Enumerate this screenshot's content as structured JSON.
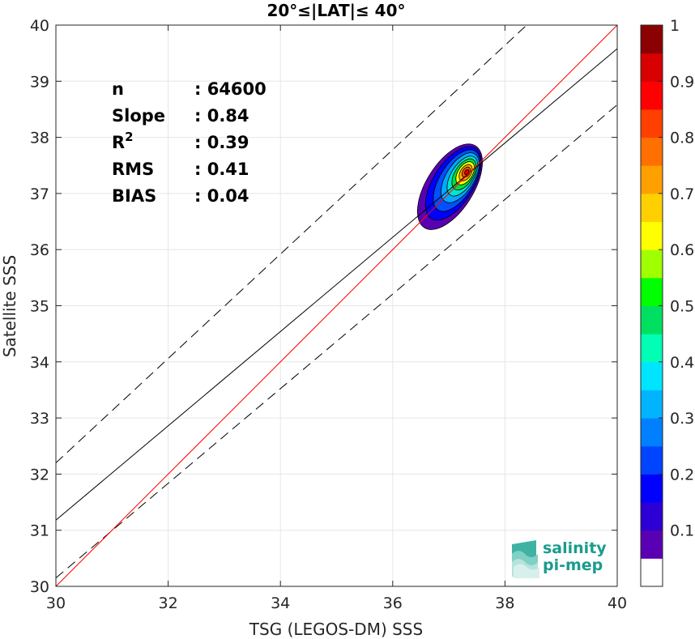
{
  "chart_data": {
    "type": "contour",
    "title": "20°≤|LAT|≤ 40°",
    "xlabel": "TSG (LEGOS-DM) SSS",
    "ylabel": "Satellite SSS",
    "xlim": [
      30,
      40
    ],
    "ylim": [
      30,
      40
    ],
    "xticks": [
      "30",
      "32",
      "34",
      "36",
      "38",
      "40"
    ],
    "yticks": [
      "30",
      "31",
      "32",
      "33",
      "34",
      "35",
      "36",
      "37",
      "38",
      "39",
      "40"
    ],
    "grid": true,
    "stats": [
      {
        "label": "n",
        "sep": ": ",
        "value": "64600"
      },
      {
        "label": "Slope",
        "sep": ": ",
        "value": "0.84"
      },
      {
        "label": "R",
        "sup": "2",
        "sep": ": ",
        "value": "0.39"
      },
      {
        "label": "RMS",
        "sep": ": ",
        "value": "0.41"
      },
      {
        "label": "BIAS",
        "sep": ": ",
        "value": "0.04"
      }
    ],
    "lines": {
      "identity": {
        "slope": 1,
        "intercept": 0,
        "color": "#ff0000",
        "style": "solid"
      },
      "fit": {
        "x": [
          30,
          40
        ],
        "y": [
          31.18,
          39.58
        ],
        "color": "#000000",
        "style": "solid"
      },
      "upper_bound": {
        "x": [
          30,
          40
        ],
        "y": [
          32.2,
          41.5
        ],
        "color": "#000000",
        "style": "dashed"
      },
      "lower_bound": {
        "x": [
          30,
          40
        ],
        "y": [
          30.15,
          38.58
        ],
        "color": "#000000",
        "style": "dashed"
      }
    },
    "density": {
      "peak": [
        37.32,
        37.38
      ],
      "description": "normalized point density contours"
    },
    "colorbar": {
      "min": 0,
      "max": 1,
      "ticks": [
        "0.1",
        "0.2",
        "0.3",
        "0.4",
        "0.5",
        "0.6",
        "0.7",
        "0.8",
        "0.9",
        "1"
      ],
      "tick_values": [
        0.1,
        0.2,
        0.3,
        0.4,
        0.5,
        0.6,
        0.7,
        0.8,
        0.9,
        1.0
      ],
      "colors": [
        "#ffffff",
        "#5a00b4",
        "#2c00d4",
        "#0000ff",
        "#0044ff",
        "#0080ff",
        "#00b4ff",
        "#00e5ff",
        "#00ffb4",
        "#00e060",
        "#00ff00",
        "#a0ff00",
        "#ffff00",
        "#ffd000",
        "#ffa000",
        "#ff7000",
        "#ff4000",
        "#ff0000",
        "#d80000",
        "#8b0000"
      ]
    }
  },
  "logo": {
    "line1": "salinity",
    "line2": "pi-mep"
  }
}
